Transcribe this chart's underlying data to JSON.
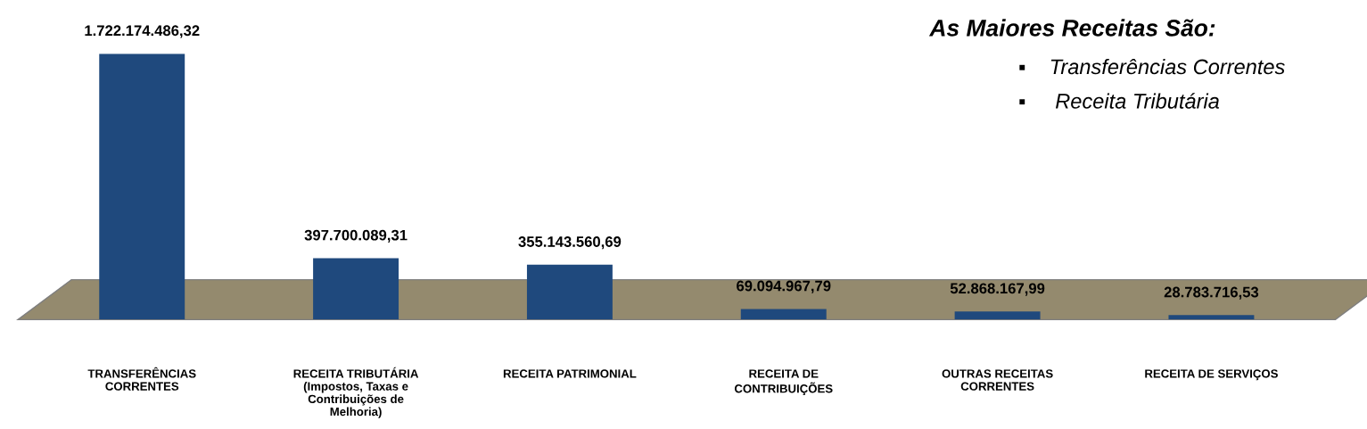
{
  "chart_data": {
    "type": "bar",
    "categories": [
      "TRANSFERÊNCIAS\nCORRENTES",
      "RECEITA TRIBUTÁRIA\n(Impostos, Taxas e\nContribuições de\nMelhoria)",
      "RECEITA PATRIMONIAL",
      "RECEITA DE\nCONTRIBUIÇÕES",
      "OUTRAS RECEITAS\nCORRENTES",
      "RECEITA DE SERVIÇOS"
    ],
    "values": [
      1722174486.32,
      397700089.31,
      355143560.69,
      69094967.79,
      52868167.99,
      28783716.53
    ],
    "value_labels": [
      "1.722.174.486,32",
      "397.700.089,31",
      "355.143.560,69",
      "69.094.967,79",
      "52.868.167,99",
      "28.783.716,53"
    ],
    "color": "#1f497d",
    "annotations": [
      "As Maiores Receitas São:",
      "▪    Transferências Correntes",
      "▪     Receita Tributária"
    ],
    "grid": false,
    "legend": false
  }
}
